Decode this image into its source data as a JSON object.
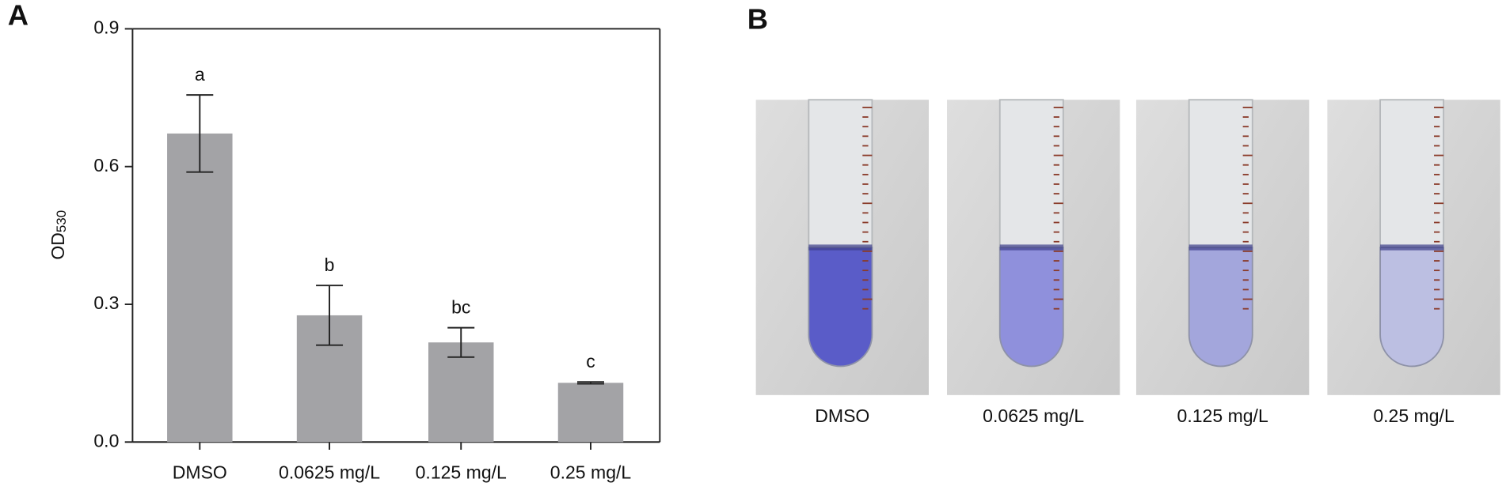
{
  "chart_data": {
    "type": "bar",
    "y_label": {
      "main": "OD",
      "sub": "530"
    },
    "categories": [
      "DMSO",
      "0.0625 mg/L",
      "0.125 mg/L",
      "0.25 mg/L"
    ],
    "values": [
      0.672,
      0.276,
      0.217,
      0.129
    ],
    "errors": [
      0.084,
      0.065,
      0.032,
      0.002
    ],
    "annotations": [
      "a",
      "b",
      "bc",
      "c"
    ],
    "color": "#a3a3a6",
    "ylim": [
      0,
      0.9
    ],
    "yticks": [
      {
        "value": 0,
        "label": "0.0"
      },
      0.3,
      0.6,
      0.9
    ]
  },
  "panel_labels": [
    "A",
    "B"
  ],
  "photo_captions": [
    "DMSO",
    "0.0625 mg/L",
    "0.125 mg/L",
    "0.25 mg/L"
  ]
}
